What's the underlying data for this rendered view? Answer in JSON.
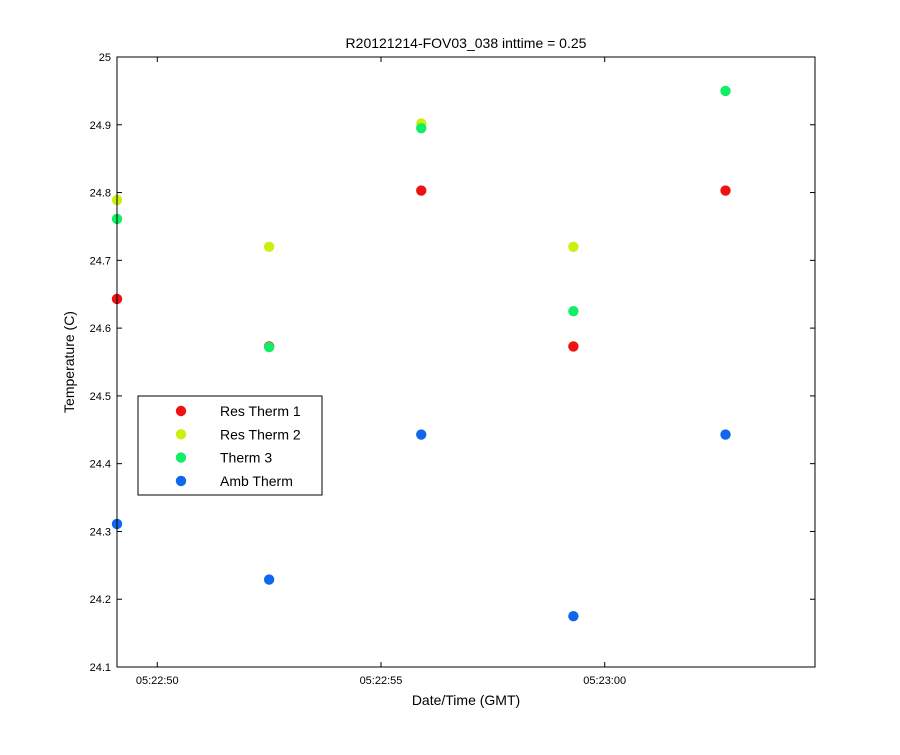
{
  "chart_data": {
    "type": "scatter",
    "title": "R20121214-FOV03_038 inttime = 0.25",
    "xlabel": "Date/Time (GMT)",
    "ylabel": "Temperature (C)",
    "xlim": [
      "05:22:49.1",
      "05:23:04.7"
    ],
    "ylim": [
      24.1,
      25
    ],
    "yticks": [
      "24.1",
      "24.2",
      "24.3",
      "24.4",
      "24.5",
      "24.6",
      "24.7",
      "24.8",
      "24.9",
      "25"
    ],
    "xticks": [
      {
        "label": "05:22:50",
        "value": "05:22:50"
      },
      {
        "label": "05:22:55",
        "value": "05:22:55"
      },
      {
        "label": "05:23:00",
        "value": "05:23:00"
      }
    ],
    "x": [
      "05:22:49.1",
      "05:22:52.5",
      "05:22:55.9",
      "05:22:59.3",
      "05:23:02.7"
    ],
    "series": [
      {
        "name": "Res Therm 1",
        "color": "#ee1111",
        "values": [
          24.643,
          24.573,
          24.803,
          24.573,
          24.803
        ]
      },
      {
        "name": "Res Therm 2",
        "color": "#ccee11",
        "values": [
          24.789,
          24.72,
          24.902,
          24.72,
          null
        ]
      },
      {
        "name": "Therm 3",
        "color": "#11ee66",
        "values": [
          24.761,
          24.572,
          24.895,
          24.625,
          24.95
        ]
      },
      {
        "name": "Amb Therm",
        "color": "#1166ee",
        "values": [
          24.311,
          24.229,
          24.443,
          24.175,
          24.443
        ]
      }
    ],
    "legend_position": "center-left",
    "grid": false
  }
}
